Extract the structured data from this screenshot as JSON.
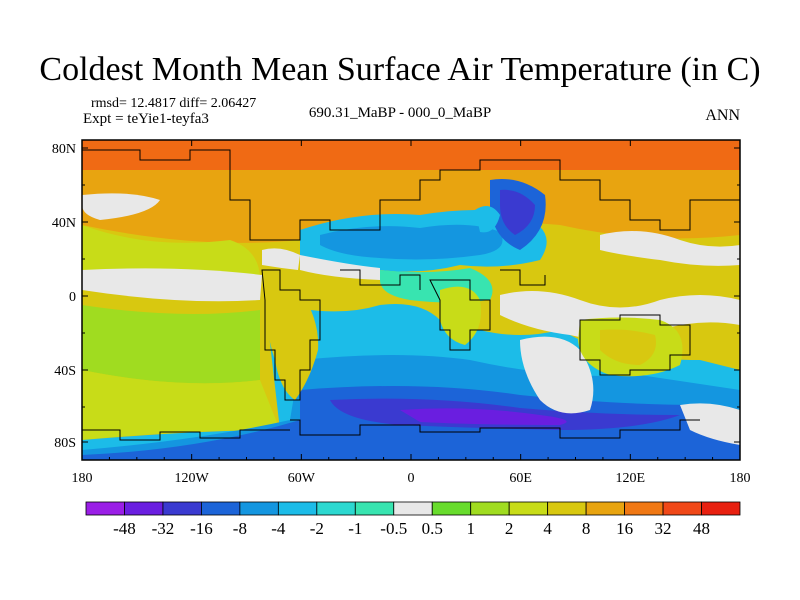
{
  "title": "Coldest Month Mean Surface Air Temperature (in C)",
  "stats": "rmsd= 12.4817 diff= 2.06427",
  "expt": "Expt = teYie1-teyfa3",
  "center_label": "690.31_MaBP - 000_0_MaBP",
  "season": "ANN",
  "lat_ticks": [
    "80N",
    "40N",
    "0",
    "40S",
    "80S"
  ],
  "lon_ticks": [
    "180",
    "120W",
    "60W",
    "0",
    "60E",
    "120E",
    "180"
  ],
  "colorbar": {
    "labels": [
      "-48",
      "-32",
      "-16",
      "-8",
      "-4",
      "-2",
      "-1",
      "-0.5",
      "0.5",
      "1",
      "2",
      "4",
      "8",
      "16",
      "32",
      "48"
    ],
    "colors": [
      "#9a1ee6",
      "#6a1ee0",
      "#3a3ad0",
      "#1c64d8",
      "#1496e0",
      "#1cbce8",
      "#2cd8d0",
      "#38e4b0",
      "#e8e8e8",
      "#68dc2c",
      "#a0dc20",
      "#c8dc18",
      "#d8c810",
      "#e8a410",
      "#f07814",
      "#f04818",
      "#e82010"
    ]
  }
}
